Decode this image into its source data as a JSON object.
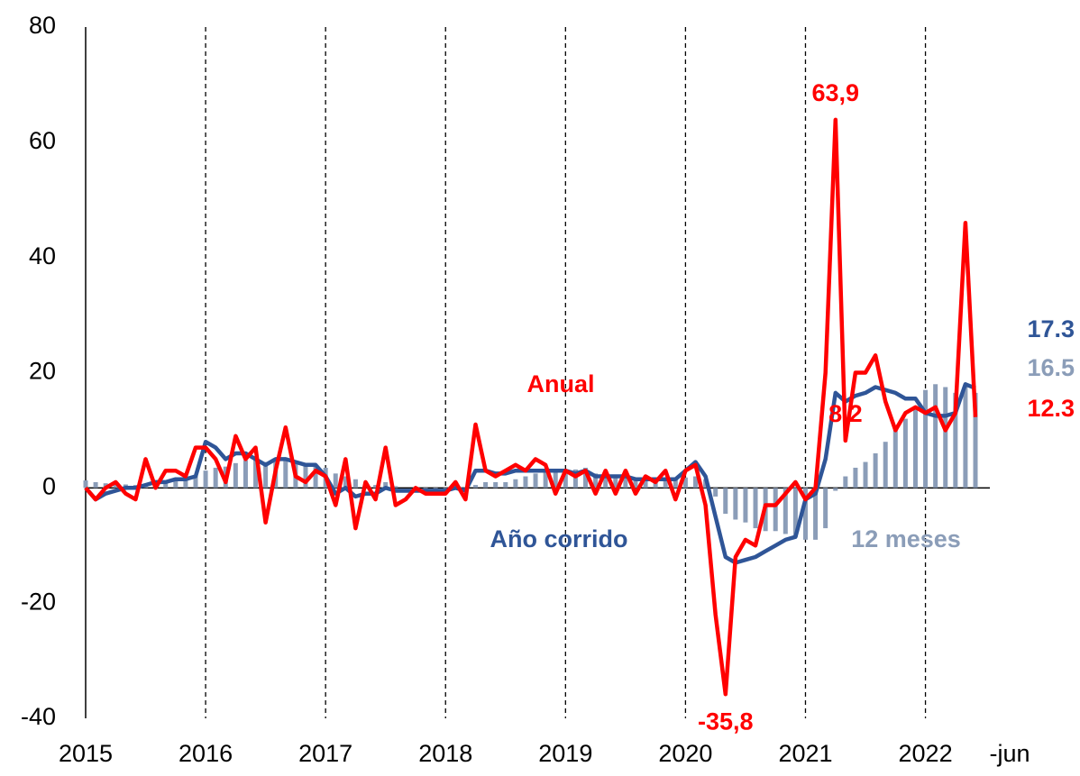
{
  "chart_data": {
    "type": "line_bar",
    "categories": [
      "2015",
      null,
      null,
      null,
      null,
      null,
      null,
      null,
      null,
      null,
      null,
      null,
      "2016",
      null,
      null,
      null,
      null,
      null,
      null,
      null,
      null,
      null,
      null,
      null,
      "2017",
      null,
      null,
      null,
      null,
      null,
      null,
      null,
      null,
      null,
      null,
      null,
      "2018",
      null,
      null,
      null,
      null,
      null,
      null,
      null,
      null,
      null,
      null,
      null,
      "2019",
      null,
      null,
      null,
      null,
      null,
      null,
      null,
      null,
      null,
      null,
      null,
      "2020",
      null,
      null,
      null,
      null,
      null,
      null,
      null,
      null,
      null,
      null,
      null,
      "2021",
      null,
      null,
      null,
      null,
      null,
      null,
      null,
      null,
      null,
      null,
      null,
      "2022",
      null,
      null,
      null,
      null,
      "-jun"
    ],
    "ylim": [
      -40,
      80
    ],
    "yticks": [
      -40,
      -20,
      0,
      20,
      40,
      60,
      80
    ],
    "series": [
      {
        "name": "12 meses",
        "kind": "bar",
        "color": "#8b9db8",
        "values": [
          1.3,
          1,
          0.8,
          0.7,
          0.6,
          0.5,
          0.5,
          0.7,
          1,
          1.2,
          1.5,
          2,
          3,
          3.5,
          3.7,
          4.3,
          4.8,
          5,
          4.5,
          4.8,
          4.8,
          4.5,
          4.3,
          4,
          3.5,
          2.5,
          2,
          1.5,
          0.8,
          0.5,
          1,
          0.3,
          0,
          -0.3,
          -0.5,
          -0.5,
          -0.5,
          -0.3,
          -0.3,
          0.5,
          1,
          1,
          1,
          1.5,
          2,
          2.5,
          3,
          3,
          3.2,
          3.2,
          3.5,
          2.5,
          2.5,
          2.2,
          2,
          1.8,
          1.7,
          1.5,
          1.5,
          1.5,
          1.8,
          2,
          1.5,
          -1.5,
          -4.5,
          -5.5,
          -6,
          -7,
          -7.5,
          -7.5,
          -8,
          -8.5,
          -9,
          -9,
          -7,
          -0.5,
          2,
          3.5,
          4.5,
          6,
          8,
          10,
          12,
          14,
          17,
          18,
          17.5,
          16.5,
          17.5,
          16.5
        ],
        "value_labels": [
          null,
          null,
          null,
          null,
          null,
          null,
          null,
          null,
          null,
          null,
          null,
          null,
          null,
          null,
          null,
          null,
          null,
          null,
          null,
          null,
          null,
          null,
          null,
          null,
          null,
          null,
          null,
          null,
          null,
          null,
          null,
          null,
          null,
          null,
          null,
          null,
          null,
          null,
          null,
          null,
          null,
          null,
          null,
          null,
          null,
          null,
          null,
          null,
          null,
          null,
          null,
          null,
          null,
          null,
          null,
          null,
          null,
          null,
          null,
          null,
          null,
          null,
          null,
          null,
          null,
          null,
          null,
          null,
          null,
          null,
          null,
          null,
          null,
          null,
          null,
          null,
          null,
          null,
          null,
          null,
          null,
          null,
          null,
          null,
          null,
          null,
          null,
          null,
          null,
          "16.5"
        ]
      },
      {
        "name": "Año corrido",
        "kind": "line",
        "color": "#2f5597",
        "values": [
          0,
          -2,
          -1,
          -0.5,
          0,
          0,
          0.5,
          1,
          1,
          1.5,
          1.5,
          2,
          8,
          7,
          5,
          6,
          6,
          5,
          4,
          5,
          5,
          4.5,
          4,
          4,
          2,
          -1,
          0,
          -1.5,
          -1,
          -1,
          0,
          -0.5,
          -0.5,
          -0.5,
          -0.5,
          -0.5,
          -0.5,
          0,
          -0.5,
          3,
          3,
          2.5,
          2.5,
          3,
          3,
          3,
          3,
          3,
          3,
          2.5,
          3,
          2,
          2,
          2,
          2,
          1.5,
          1.5,
          1.5,
          1.5,
          1.5,
          3,
          4.5,
          2,
          -5,
          -12,
          -13,
          -12.5,
          -12,
          -11,
          -10,
          -9,
          -8.5,
          -2,
          -1,
          5,
          16.5,
          15,
          16,
          16.5,
          17.5,
          17,
          16.5,
          15.5,
          15.5,
          13,
          12.5,
          12.5,
          13,
          18,
          17.3
        ],
        "value_labels": [
          null,
          null,
          null,
          null,
          null,
          null,
          null,
          null,
          null,
          null,
          null,
          null,
          null,
          null,
          null,
          null,
          null,
          null,
          null,
          null,
          null,
          null,
          null,
          null,
          null,
          null,
          null,
          null,
          null,
          null,
          null,
          null,
          null,
          null,
          null,
          null,
          null,
          null,
          null,
          null,
          null,
          null,
          null,
          null,
          null,
          null,
          null,
          null,
          null,
          null,
          null,
          null,
          null,
          null,
          null,
          null,
          null,
          null,
          null,
          null,
          null,
          null,
          null,
          null,
          null,
          null,
          null,
          null,
          null,
          null,
          null,
          null,
          null,
          null,
          null,
          null,
          null,
          null,
          null,
          null,
          null,
          null,
          null,
          null,
          null,
          null,
          null,
          null,
          null,
          "17.3"
        ]
      },
      {
        "name": "Anual",
        "kind": "line",
        "color": "#ff0000",
        "values": [
          0,
          -2,
          0,
          1,
          -1,
          -2,
          5,
          0,
          3,
          3,
          2,
          7,
          7,
          5,
          1,
          9,
          5,
          7,
          -6,
          3,
          10.5,
          2,
          1,
          3,
          2,
          -3,
          5,
          -7,
          1,
          -2,
          7,
          -3,
          -2,
          0,
          -1,
          -1,
          -1,
          1,
          -2,
          11,
          3,
          2,
          3,
          4,
          3,
          5,
          4,
          -1,
          3,
          2,
          3,
          -1,
          3,
          -1,
          3,
          -1,
          2,
          1,
          3,
          -2,
          3,
          4,
          -3,
          -22,
          -35.8,
          -12,
          -9,
          -10,
          -3,
          -3,
          -1,
          1,
          -2,
          0,
          20,
          63.9,
          8.2,
          20,
          20,
          23,
          15,
          10,
          13,
          14,
          13,
          14,
          10,
          13,
          46,
          12.3
        ],
        "value_labels": [
          null,
          null,
          null,
          null,
          null,
          null,
          null,
          null,
          null,
          null,
          null,
          null,
          null,
          null,
          null,
          null,
          null,
          null,
          null,
          null,
          null,
          null,
          null,
          null,
          null,
          null,
          null,
          null,
          null,
          null,
          null,
          null,
          null,
          null,
          null,
          null,
          null,
          null,
          null,
          null,
          null,
          null,
          null,
          null,
          null,
          null,
          null,
          null,
          null,
          null,
          null,
          null,
          null,
          null,
          null,
          null,
          null,
          null,
          null,
          null,
          null,
          null,
          null,
          null,
          "-35,8",
          null,
          null,
          null,
          null,
          null,
          null,
          null,
          null,
          null,
          null,
          "63,9",
          "8,2",
          null,
          null,
          null,
          null,
          null,
          null,
          null,
          null,
          null,
          null,
          null,
          null,
          "12.3"
        ]
      }
    ]
  }
}
